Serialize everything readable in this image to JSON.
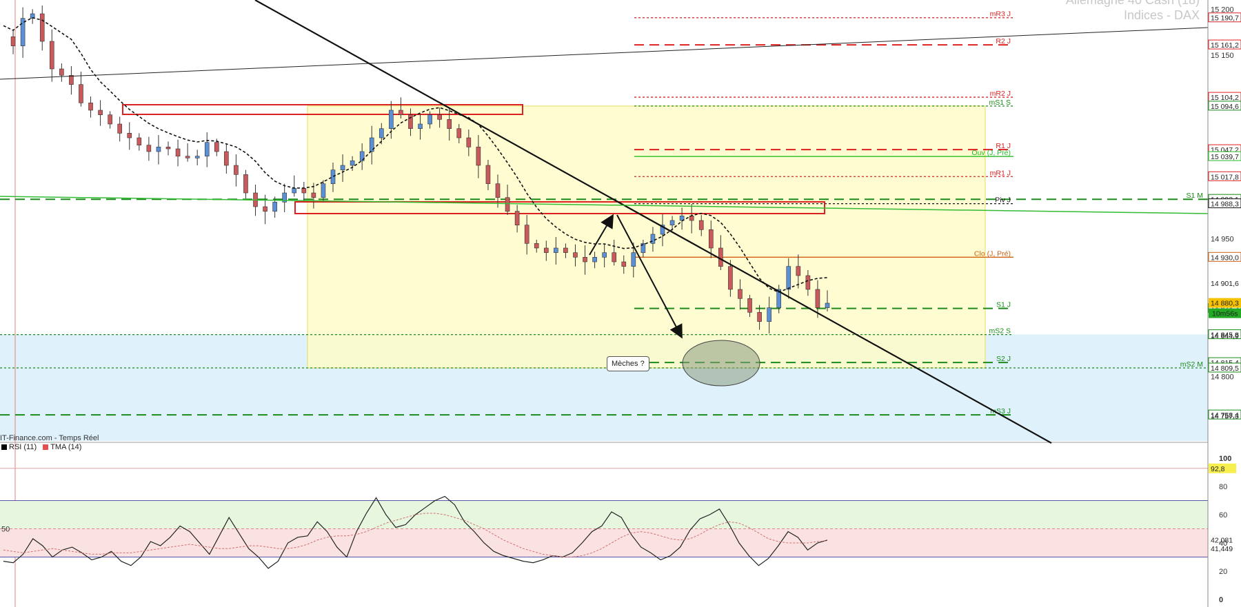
{
  "header": {
    "title_line1": "Allemagne 40 Cash (18)",
    "title_line2": "Indices - DAX"
  },
  "source_label": "IT-Finance.com - Temps Réel",
  "note_label": "Mèches ?",
  "colors": {
    "resistance": "#dd2020",
    "support": "#1a8a1a",
    "blue": "#4a86e8",
    "yellow_zone": "#fefbc8",
    "blue_zone": "#dff1fb",
    "rsi_line": "#222222",
    "tma_line": "#d07070"
  },
  "chart_data": [
    {
      "type": "candlestick",
      "title": "Allemagne 40 Cash (18) — Indices - DAX",
      "ylim": [
        14730,
        15210
      ],
      "y_ticks": [
        15200,
        15150,
        14950,
        14800
      ],
      "close_path": [
        15170,
        15160,
        15190,
        15195,
        15165,
        15135,
        15128,
        15118,
        15098,
        15090,
        15085,
        15075,
        15065,
        15060,
        15052,
        15045,
        15050,
        15048,
        15040,
        15038,
        15040,
        15055,
        15045,
        15030,
        15020,
        15000,
        14985,
        14980,
        14990,
        15000,
        15005,
        15000,
        14995,
        15010,
        15025,
        15030,
        15035,
        15045,
        15060,
        15070,
        15090,
        15085,
        15070,
        15075,
        15085,
        15080,
        15070,
        15060,
        15050,
        15030,
        15010,
        14995,
        14980,
        14965,
        14945,
        14940,
        14935,
        14940,
        14935,
        14930,
        14925,
        14930,
        14935,
        14925,
        14920,
        14935,
        14945,
        14955,
        14965,
        14970,
        14975,
        14970,
        14960,
        14940,
        14920,
        14895,
        14885,
        14870,
        14860,
        14875,
        14895,
        14920,
        14910,
        14895,
        14875,
        14880
      ],
      "last_price": "14 880,3",
      "countdown": "10m56s"
    },
    {
      "type": "line",
      "title": "RSI (11) / TMA (14)",
      "ylim": [
        0,
        100
      ],
      "y_ticks": [
        100,
        80,
        60,
        40,
        20,
        0
      ],
      "overbought": 70,
      "oversold": 30,
      "mid": 50,
      "series": [
        {
          "name": "RSI (11)",
          "values": [
            27,
            26,
            32,
            43,
            38,
            30,
            35,
            37,
            33,
            28,
            30,
            34,
            27,
            24,
            30,
            41,
            38,
            44,
            52,
            48,
            40,
            32,
            45,
            58,
            47,
            36,
            30,
            22,
            27,
            40,
            44,
            45,
            55,
            48,
            37,
            30,
            48,
            61,
            72,
            60,
            51,
            53,
            60,
            65,
            70,
            73,
            67,
            55,
            48,
            40,
            34,
            31,
            29,
            27,
            26,
            28,
            31,
            30,
            33,
            40,
            48,
            52,
            62,
            58,
            46,
            37,
            33,
            28,
            31,
            37,
            49,
            57,
            60,
            64,
            53,
            40,
            31,
            24,
            29,
            38,
            48,
            44,
            35,
            40,
            42
          ]
        },
        {
          "name": "TMA (14)",
          "values": [
            35,
            34,
            33,
            34,
            35,
            36,
            35,
            34,
            33,
            32,
            32,
            33,
            33,
            33,
            34,
            35,
            36,
            37,
            38,
            39,
            38,
            37,
            36,
            36,
            37,
            38,
            38,
            37,
            36,
            36,
            37,
            39,
            42,
            44,
            45,
            45,
            46,
            48,
            51,
            54,
            56,
            58,
            60,
            61,
            61,
            60,
            58,
            56,
            53,
            50,
            46,
            42,
            39,
            36,
            34,
            32,
            31,
            30,
            30,
            31,
            33,
            36,
            40,
            44,
            47,
            48,
            47,
            45,
            43,
            42,
            43,
            46,
            50,
            53,
            55,
            54,
            51,
            47,
            43,
            41,
            40,
            40,
            40,
            41,
            41.4
          ]
        }
      ],
      "value_labels": [
        "92,8",
        "42,081",
        "41,449"
      ]
    }
  ],
  "levels": [
    {
      "id": "mR3",
      "label": "mR3 J",
      "value": "15 190,7",
      "color": "#dd2020",
      "style": "dotted"
    },
    {
      "id": "R2",
      "label": "R2 J",
      "value": "15 161,2",
      "color": "#dd2020",
      "style": "dashed"
    },
    {
      "id": "mR2",
      "label": "mR2 J",
      "value": "15 104,2",
      "color": "#dd2020",
      "style": "dotted"
    },
    {
      "id": "mS1S",
      "label": "mS1 S",
      "value": "15 094,6",
      "color": "#1a8a1a",
      "style": "dotted"
    },
    {
      "id": "R1",
      "label": "R1 J",
      "value": "15 047,2",
      "color": "#dd2020",
      "style": "dashed"
    },
    {
      "id": "Ouv",
      "label": "Ouv (J, Pré)",
      "value": "15 039,7",
      "color": "#22bb22",
      "style": "solid"
    },
    {
      "id": "mR1",
      "label": "mR1 J",
      "value": "15 017,8",
      "color": "#dd2020",
      "style": "dotted"
    },
    {
      "id": "S1M",
      "label": "S1 M",
      "value": "14 993,1",
      "color": "#1a8a1a",
      "style": "dashed"
    },
    {
      "id": "Piv",
      "label": "Piv J",
      "value": "14 988,3",
      "color": "#111111",
      "style": "dotted"
    },
    {
      "id": "Clo",
      "label": "Clo (J, Pré)",
      "value": "14 930,0",
      "color": "#d06010",
      "style": "solid"
    },
    {
      "id": "S1",
      "label": "S1 J",
      "value": "14 874,3",
      "color": "#1a8a1a",
      "style": "dashed"
    },
    {
      "id": "mS2S",
      "label": "mS2 S",
      "value": "14 845,8",
      "color": "#1a8a1a",
      "style": "dotted"
    },
    {
      "id": "S2",
      "label": "S2 J",
      "value": "14 815,4",
      "color": "#1a8a1a",
      "style": "dashed"
    },
    {
      "id": "mS2M",
      "label": "mS2 M",
      "value": "14 809,5",
      "color": "#1a8a1a",
      "style": "dotted"
    },
    {
      "id": "mS3",
      "label": "mS3 J",
      "value": "14 758,4",
      "color": "#1a8a1a",
      "style": "dashed"
    }
  ],
  "extra_price_tags": [
    "14 950",
    "14 901,6",
    "14 844,9",
    "14 757,3",
    "14 800"
  ]
}
